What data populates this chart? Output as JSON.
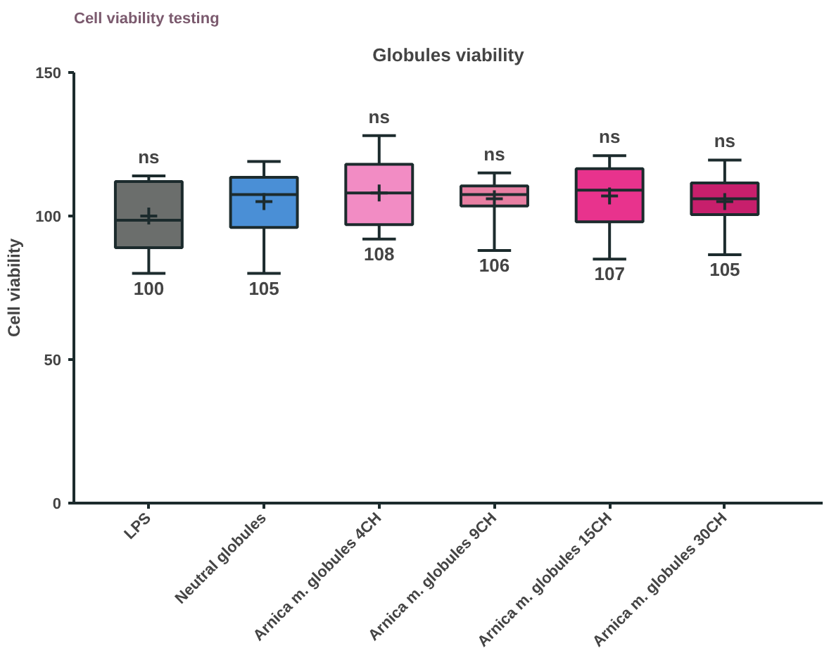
{
  "chart_data": {
    "type": "box",
    "title": "Globules viability",
    "ylabel": "Cell viability",
    "categories": [
      "LPS",
      "Neutral globules",
      "Arnica m. globules 4CH",
      "Arnica m. globules 9CH",
      "Arnica m. globules 15CH",
      "Arnica m. globules 30CH"
    ],
    "colors": [
      "#6b6e6c",
      "#4a8fd6",
      "#f28cc4",
      "#e77fa2",
      "#e8338d",
      "#c71f6c"
    ],
    "boxes": [
      {
        "low": 80,
        "q1": 89,
        "median": 98.5,
        "q3": 112,
        "high": 114,
        "mean": 100
      },
      {
        "low": 80,
        "q1": 96,
        "median": 107.5,
        "q3": 113.5,
        "high": 119,
        "mean": 105
      },
      {
        "low": 92,
        "q1": 97,
        "median": 108,
        "q3": 118,
        "high": 128,
        "mean": 108
      },
      {
        "low": 88,
        "q1": 103.5,
        "median": 107.5,
        "q3": 110.5,
        "high": 115,
        "mean": 106
      },
      {
        "low": 85,
        "q1": 98,
        "median": 109,
        "q3": 116.5,
        "high": 121,
        "mean": 107
      },
      {
        "low": 86.5,
        "q1": 100.5,
        "median": 106,
        "q3": 111.5,
        "high": 119.5,
        "mean": 105
      }
    ],
    "value_labels": [
      "100",
      "105",
      "108",
      "106",
      "107",
      "105"
    ],
    "ylim": [
      0,
      150
    ],
    "yticks": [
      0,
      50,
      100,
      150
    ],
    "grid": false,
    "annotations": [
      "Cell viability testing",
      {
        "text": "ns",
        "x": "LPS",
        "y": 114
      },
      {
        "text": "ns",
        "x": "Arnica m. globules 4CH",
        "y": 128
      },
      {
        "text": "ns",
        "x": "Arnica m. globules 9CH",
        "y": 115
      },
      {
        "text": "ns",
        "x": "Arnica m. globules 15CH",
        "y": 121
      },
      {
        "text": "ns",
        "x": "Arnica m. globules 30CH",
        "y": 119.5
      }
    ]
  }
}
